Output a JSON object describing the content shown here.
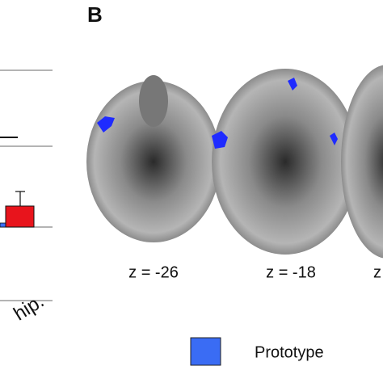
{
  "panel_label": "B",
  "axis_label_fragment": "hip.",
  "slices": [
    {
      "label": "z = -26"
    },
    {
      "label": "z = -18"
    },
    {
      "label": "z"
    }
  ],
  "legend": {
    "label": "Prototype",
    "color": "#3a6cf4"
  }
}
